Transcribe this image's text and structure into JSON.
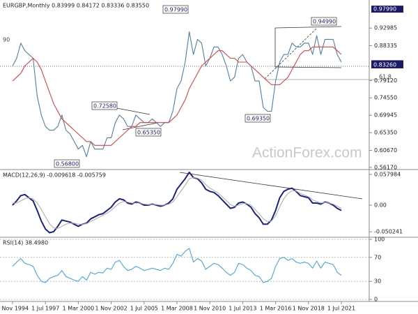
{
  "chart_data": [
    {
      "type": "line",
      "title": "EURGBP,Monthly 0.83999 0.84172 0.83336 0.83550",
      "watermark": "ActionForex.com",
      "ylim": [
        0.556,
        1.004
      ],
      "yticks": [
        {
          "value": 0.92985,
          "label": "0.92985"
        },
        {
          "value": 0.88335,
          "label": "0.88335"
        },
        {
          "value": 0.7912,
          "label": "0.79120"
        },
        {
          "value": 0.7455,
          "label": "0.74550"
        },
        {
          "value": 0.69945,
          "label": "0.69945"
        },
        {
          "value": 0.6535,
          "label": "0.65350"
        },
        {
          "value": 0.6067,
          "label": "0.60670"
        },
        {
          "value": 0.5617,
          "label": "0.56170"
        }
      ],
      "marker_labels": [
        {
          "value": 0.9799,
          "label": "0.97990"
        },
        {
          "value": 0.8355,
          "label": "0.83550"
        },
        {
          "value": 0.8326,
          "label": "0.83260"
        }
      ],
      "annotations": [
        "0.97990",
        "0.94990",
        "0.72580",
        "0.65350",
        "0.69350",
        "0.56800",
        "90",
        "61.8"
      ],
      "grid": false,
      "series": [
        {
          "color": "#4f7fa6",
          "values": [
            0.83,
            0.85,
            0.89,
            0.87,
            0.86,
            0.85,
            0.75,
            0.7,
            0.67,
            0.66,
            0.66,
            0.67,
            0.7,
            0.66,
            0.65,
            0.63,
            0.61,
            0.62,
            0.59,
            0.63,
            0.61,
            0.61,
            0.61,
            0.64,
            0.64,
            0.68,
            0.7,
            0.69,
            0.67,
            0.67,
            0.7,
            0.69,
            0.68,
            0.68,
            0.69,
            0.68,
            0.67,
            0.68,
            0.68,
            0.71,
            0.77,
            0.79,
            0.84,
            0.92,
            0.86,
            0.9,
            0.89,
            0.83,
            0.85,
            0.88,
            0.88,
            0.86,
            0.83,
            0.79,
            0.8,
            0.85,
            0.86,
            0.84,
            0.83,
            0.79,
            0.79,
            0.72,
            0.71,
            0.71,
            0.79,
            0.84,
            0.86,
            0.86,
            0.89,
            0.88,
            0.88,
            0.89,
            0.89,
            0.86,
            0.91,
            0.86,
            0.9,
            0.9,
            0.9,
            0.86,
            0.84
          ]
        },
        {
          "color": "#e04040",
          "values": [
            0.79,
            0.8,
            0.81,
            0.83,
            0.84,
            0.85,
            0.84,
            0.82,
            0.79,
            0.76,
            0.73,
            0.71,
            0.69,
            0.68,
            0.67,
            0.66,
            0.65,
            0.64,
            0.63,
            0.63,
            0.62,
            0.62,
            0.62,
            0.62,
            0.62,
            0.63,
            0.64,
            0.65,
            0.66,
            0.67,
            0.67,
            0.68,
            0.68,
            0.68,
            0.68,
            0.68,
            0.68,
            0.68,
            0.68,
            0.69,
            0.7,
            0.72,
            0.74,
            0.77,
            0.79,
            0.81,
            0.83,
            0.84,
            0.85,
            0.86,
            0.87,
            0.87,
            0.86,
            0.85,
            0.85,
            0.84,
            0.84,
            0.84,
            0.83,
            0.82,
            0.81,
            0.8,
            0.79,
            0.78,
            0.78,
            0.78,
            0.79,
            0.8,
            0.82,
            0.84,
            0.86,
            0.87,
            0.87,
            0.88,
            0.88,
            0.88,
            0.88,
            0.88,
            0.88,
            0.87,
            0.86
          ]
        }
      ]
    },
    {
      "type": "line",
      "title": "MACD(12,26,9) -0.009618 -0.005759",
      "ylim": [
        -0.0606,
        0.0672
      ],
      "yticks": [
        0.057984,
        {
          "value": 0,
          "label": "0.00"
        },
        -0.050241
      ],
      "grid": false,
      "series": [
        {
          "color": "#1a237e",
          "values": [
            0.0,
            0.008,
            0.018,
            0.02,
            0.014,
            0.008,
            -0.01,
            -0.03,
            -0.045,
            -0.052,
            -0.05,
            -0.04,
            -0.028,
            -0.03,
            -0.032,
            -0.036,
            -0.04,
            -0.036,
            -0.034,
            -0.026,
            -0.022,
            -0.018,
            -0.016,
            -0.01,
            -0.004,
            0.006,
            0.012,
            0.01,
            0.004,
            0.002,
            0.006,
            0.004,
            0.0,
            0.0,
            0.002,
            0.0,
            -0.002,
            0.0,
            0.004,
            0.012,
            0.03,
            0.04,
            0.05,
            0.062,
            0.052,
            0.05,
            0.042,
            0.03,
            0.026,
            0.024,
            0.018,
            0.01,
            0.002,
            -0.006,
            -0.004,
            0.004,
            0.006,
            0.002,
            -0.004,
            -0.016,
            -0.024,
            -0.036,
            -0.036,
            -0.028,
            -0.01,
            0.014,
            0.026,
            0.03,
            0.032,
            0.026,
            0.018,
            0.016,
            0.014,
            0.004,
            0.004,
            0.002,
            0.006,
            0.004,
            0.0,
            -0.006,
            -0.01
          ]
        },
        {
          "color": "#b0b0b0",
          "values": [
            0.004,
            0.004,
            0.008,
            0.012,
            0.014,
            0.012,
            0.004,
            -0.008,
            -0.022,
            -0.035,
            -0.043,
            -0.044,
            -0.04,
            -0.036,
            -0.034,
            -0.034,
            -0.036,
            -0.036,
            -0.035,
            -0.031,
            -0.027,
            -0.023,
            -0.019,
            -0.015,
            -0.01,
            -0.003,
            0.004,
            0.007,
            0.006,
            0.004,
            0.004,
            0.004,
            0.002,
            0.001,
            0.001,
            0.001,
            0.0,
            0.0,
            0.002,
            0.006,
            0.016,
            0.027,
            0.038,
            0.05,
            0.052,
            0.051,
            0.047,
            0.039,
            0.032,
            0.028,
            0.023,
            0.016,
            0.009,
            0.001,
            -0.002,
            0.0,
            0.003,
            0.003,
            0.0,
            -0.008,
            -0.016,
            -0.026,
            -0.031,
            -0.03,
            -0.02,
            -0.003,
            0.012,
            0.022,
            0.027,
            0.027,
            0.022,
            0.019,
            0.016,
            0.01,
            0.007,
            0.004,
            0.005,
            0.004,
            0.002,
            -0.002,
            -0.006
          ]
        }
      ]
    },
    {
      "type": "line",
      "title": "RSI(14) 38.4980",
      "ylim": [
        -3.5,
        103.5
      ],
      "yticks": [
        0,
        30,
        70,
        100
      ],
      "grid": true,
      "categories": [
        "1 Nov 1994",
        null,
        null,
        null,
        null,
        null,
        null,
        null,
        "1 Jul 1997",
        null,
        null,
        null,
        null,
        null,
        null,
        null,
        "1 Mar 2000",
        null,
        null,
        null,
        null,
        null,
        null,
        null,
        "1 Nov 2002",
        null,
        null,
        null,
        null,
        null,
        null,
        null,
        "1 Jul 2005",
        null,
        null,
        null,
        null,
        null,
        null,
        null,
        "1 Mar 2008",
        null,
        null,
        null,
        null,
        null,
        null,
        null,
        "1 Nov 2010",
        null,
        null,
        null,
        null,
        null,
        null,
        null,
        "1 Jul 2013",
        null,
        null,
        null,
        null,
        null,
        null,
        null,
        "1 Mar 2016",
        null,
        null,
        null,
        null,
        null,
        null,
        null,
        "1 Nov 2018",
        null,
        null,
        null,
        null,
        null,
        null,
        null,
        "1 Jul 2021"
      ],
      "series": [
        {
          "color": "#4aa3df",
          "values": [
            55,
            62,
            68,
            60,
            58,
            55,
            40,
            30,
            28,
            35,
            38,
            40,
            48,
            38,
            35,
            32,
            30,
            38,
            32,
            45,
            42,
            45,
            44,
            52,
            50,
            62,
            65,
            55,
            48,
            50,
            55,
            52,
            48,
            50,
            52,
            50,
            48,
            52,
            50,
            60,
            75,
            72,
            80,
            85,
            62,
            68,
            64,
            50,
            55,
            60,
            58,
            52,
            45,
            40,
            45,
            60,
            58,
            52,
            48,
            40,
            38,
            28,
            30,
            35,
            55,
            68,
            70,
            65,
            68,
            62,
            60,
            62,
            60,
            52,
            64,
            52,
            62,
            60,
            58,
            45,
            40
          ]
        }
      ]
    }
  ]
}
